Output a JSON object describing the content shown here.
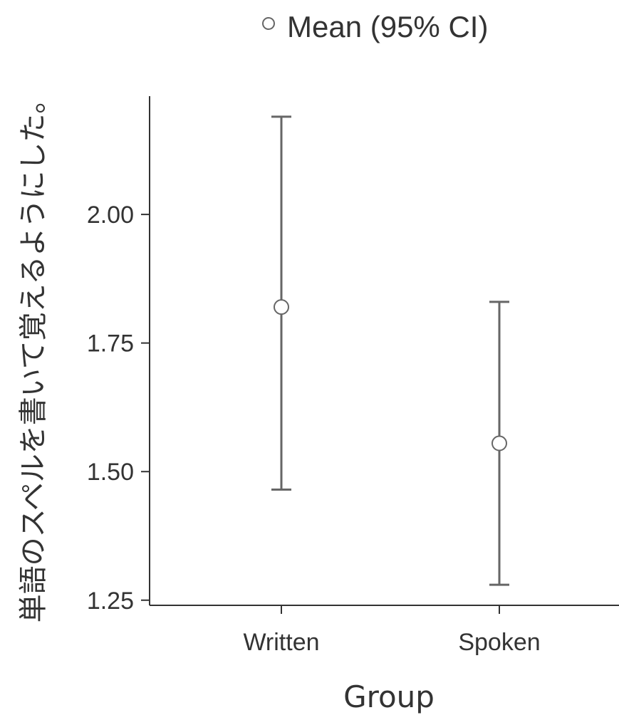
{
  "chart_data": {
    "type": "errorbar",
    "legend": {
      "label": "Mean (95% CI)",
      "position": "top-center"
    },
    "xlabel": "Group",
    "ylabel": "単語のスペルを書いて覚えるようにした。",
    "categories": [
      "Written",
      "Spoken"
    ],
    "series": [
      {
        "mean": [
          1.82,
          1.555
        ],
        "ci_lower": [
          1.465,
          1.28
        ],
        "ci_upper": [
          2.19,
          1.83
        ]
      }
    ],
    "yticks": [
      1.25,
      1.5,
      1.75,
      2.0
    ],
    "ytick_labels": [
      "1.25",
      "1.50",
      "1.75",
      "2.00"
    ],
    "ylim": [
      1.24,
      2.23
    ],
    "grid": false,
    "colors": {
      "line": "#666666",
      "marker_fill": "#ffffff",
      "text": "#333333"
    }
  }
}
